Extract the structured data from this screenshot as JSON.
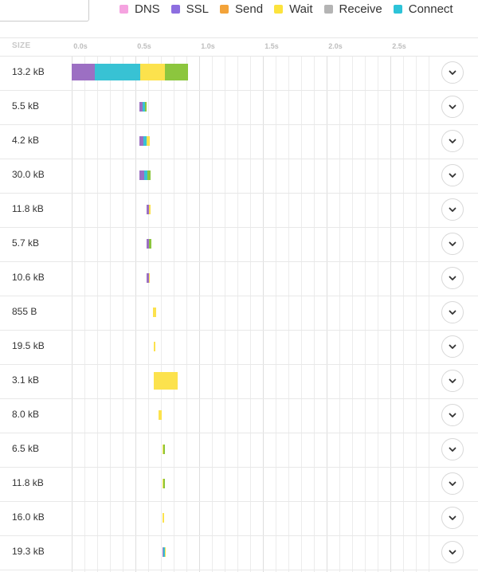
{
  "legend": [
    {
      "label": "DNS",
      "color": "#f5a3e0"
    },
    {
      "label": "SSL",
      "color": "#8d6ee0"
    },
    {
      "label": "Send",
      "color": "#f3a33a"
    },
    {
      "label": "Wait",
      "color": "#fce33d"
    },
    {
      "label": "Receive",
      "color": "#b4b4b4"
    },
    {
      "label": "Connect",
      "color": "#2dc3d8"
    }
  ],
  "header": {
    "size_label": "SIZE",
    "ticks": [
      "0.0s",
      "0.5s",
      "1.0s",
      "1.5s",
      "2.0s",
      "2.5s"
    ]
  },
  "timeline": {
    "max_seconds": 3.2,
    "major_seconds": [
      0,
      0.5,
      1.0,
      1.5,
      2.0,
      2.5,
      3.0
    ],
    "minor_step": 0.1
  },
  "segment_colors": {
    "purple": "#9c6fc3",
    "blue": "#8d6ee0",
    "cyan": "#38c2d4",
    "yellow": "#fce24d",
    "green": "#8cc63e"
  },
  "rows": [
    {
      "size": "13.2 kB",
      "segments": [
        [
          "purple",
          0.0,
          0.18
        ],
        [
          "cyan",
          0.18,
          0.54
        ],
        [
          "yellow",
          0.54,
          0.73
        ],
        [
          "green",
          0.73,
          0.91
        ]
      ],
      "style": "big"
    },
    {
      "size": "5.5 kB",
      "segments": [
        [
          "purple",
          0.53,
          0.555
        ],
        [
          "cyan",
          0.555,
          0.575
        ],
        [
          "green",
          0.575,
          0.585
        ]
      ]
    },
    {
      "size": "4.2 kB",
      "segments": [
        [
          "purple",
          0.53,
          0.56
        ],
        [
          "cyan",
          0.56,
          0.59
        ],
        [
          "yellow",
          0.59,
          0.615
        ]
      ]
    },
    {
      "size": "30.0 kB",
      "segments": [
        [
          "purple",
          0.53,
          0.57
        ],
        [
          "cyan",
          0.57,
          0.595
        ],
        [
          "green",
          0.595,
          0.62
        ]
      ]
    },
    {
      "size": "11.8 kB",
      "segments": [
        [
          "purple",
          0.59,
          0.605
        ],
        [
          "yellow",
          0.605,
          0.62
        ]
      ]
    },
    {
      "size": "5.7 kB",
      "segments": [
        [
          "purple",
          0.59,
          0.605
        ],
        [
          "green",
          0.605,
          0.625
        ]
      ]
    },
    {
      "size": "10.6 kB",
      "segments": [
        [
          "purple",
          0.59,
          0.605
        ],
        [
          "yellow",
          0.605,
          0.615
        ]
      ]
    },
    {
      "size": "855 B",
      "segments": [
        [
          "yellow",
          0.64,
          0.665
        ]
      ]
    },
    {
      "size": "19.5 kB",
      "segments": [
        [
          "yellow",
          0.645,
          0.655
        ]
      ]
    },
    {
      "size": "3.1 kB",
      "segments": [
        [
          "yellow",
          0.645,
          0.83
        ]
      ],
      "style": "tall"
    },
    {
      "size": "8.0 kB",
      "segments": [
        [
          "yellow",
          0.68,
          0.705
        ]
      ]
    },
    {
      "size": "6.5 kB",
      "segments": [
        [
          "yellow",
          0.71,
          0.72
        ],
        [
          "green",
          0.72,
          0.73
        ]
      ]
    },
    {
      "size": "11.8 kB",
      "segments": [
        [
          "yellow",
          0.71,
          0.72
        ],
        [
          "green",
          0.72,
          0.73
        ]
      ]
    },
    {
      "size": "16.0 kB",
      "segments": [
        [
          "yellow",
          0.71,
          0.725
        ]
      ]
    },
    {
      "size": "19.3 kB",
      "segments": [
        [
          "purple",
          0.71,
          0.72
        ],
        [
          "cyan",
          0.72,
          0.73
        ],
        [
          "yellow",
          0.73,
          0.74
        ]
      ]
    }
  ]
}
